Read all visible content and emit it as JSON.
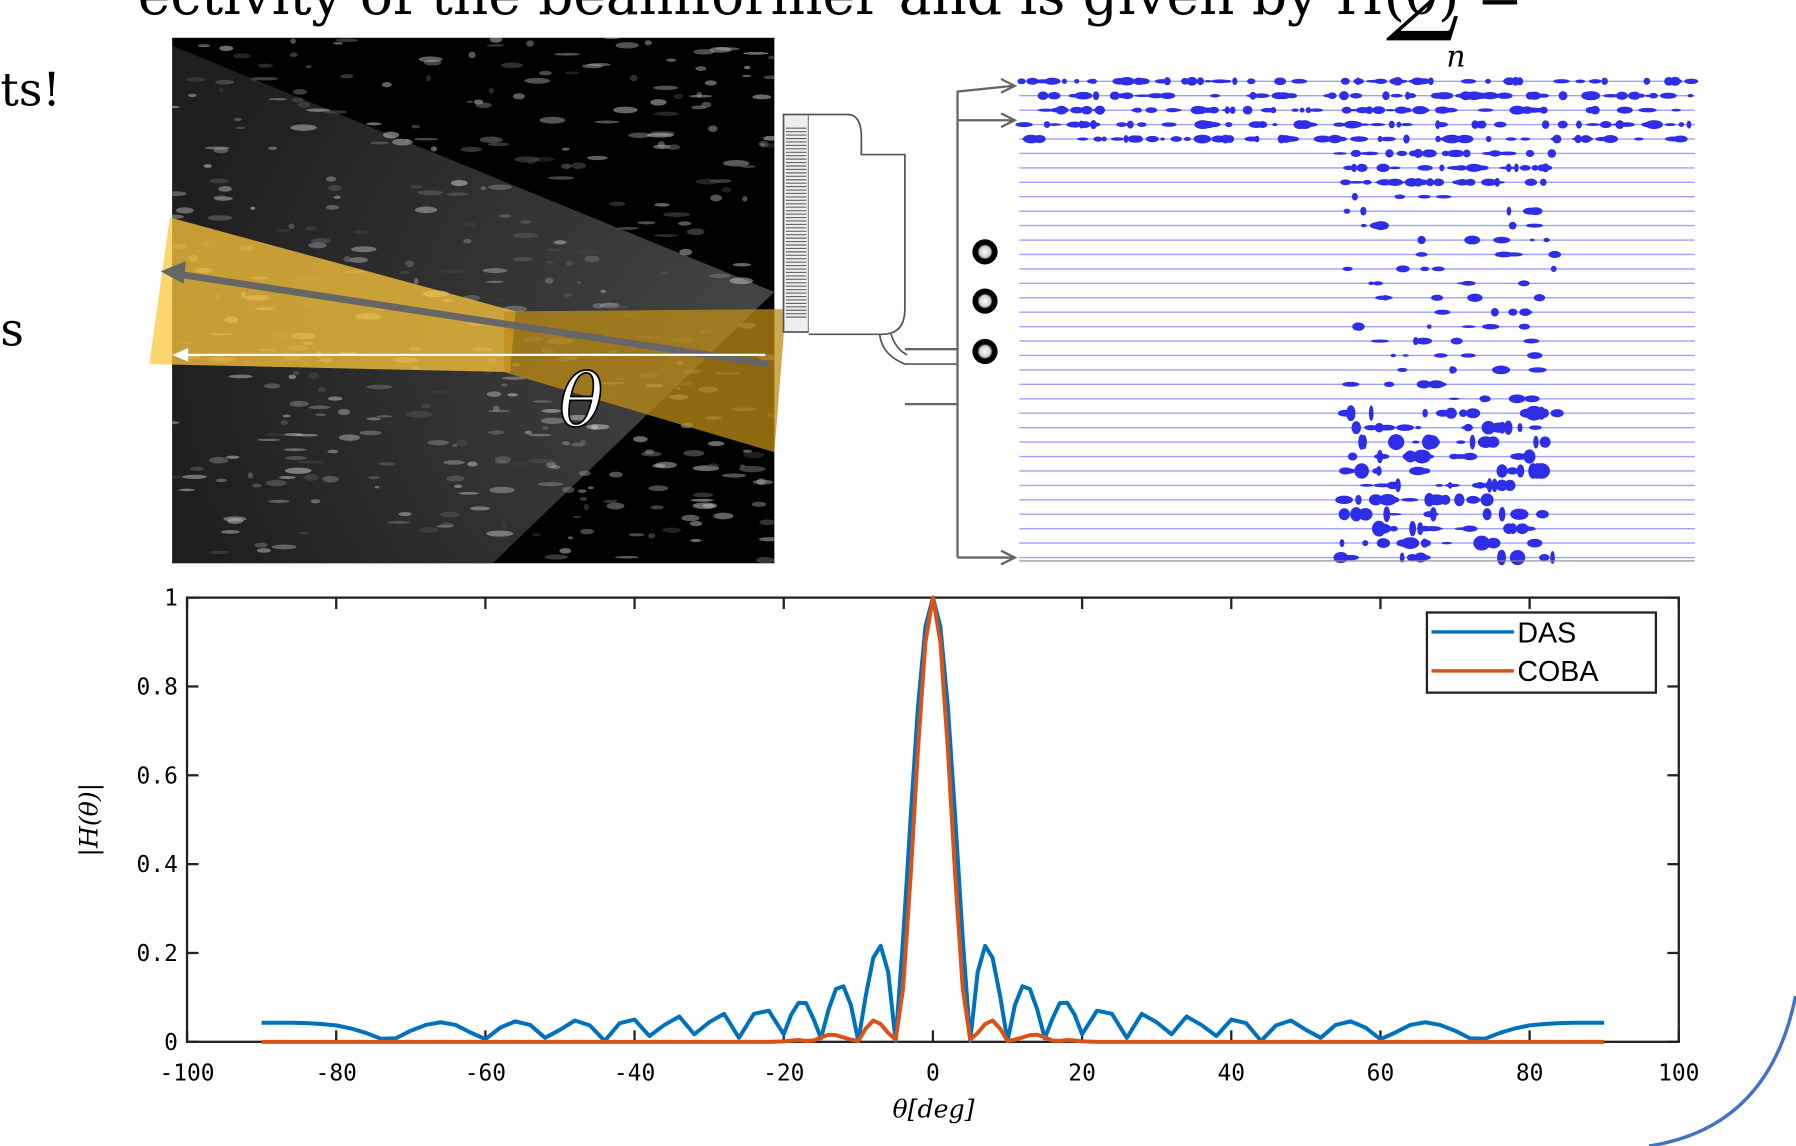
{
  "slide": {
    "heading": "ectivity of the beamformer and is given by H(θ) =",
    "sum_symbol": "∑",
    "sum_index": "n",
    "left_text_1": "ts!",
    "left_text_2": "s",
    "angle_label": "θ"
  },
  "chart_data": {
    "type": "line",
    "xlabel": "θ[deg]",
    "ylabel": "|H(θ)|",
    "x": [
      -90,
      -88,
      -86,
      -84,
      -82,
      -80,
      -78,
      -76,
      -74,
      -72,
      -70,
      -68,
      -66,
      -64,
      -62,
      -60,
      -58,
      -56,
      -54,
      -52,
      -50,
      -48,
      -46,
      -44,
      -42,
      -40,
      -38,
      -36,
      -34,
      -32,
      -30,
      -28,
      -26,
      -24,
      -22,
      -20,
      -19,
      -18,
      -17,
      -16,
      -15,
      -14,
      -13,
      -12,
      -11,
      -10,
      -9,
      -8,
      -7,
      -6,
      -5,
      -4,
      -3,
      -2,
      -1,
      0,
      1,
      2,
      3,
      4,
      5,
      6,
      7,
      8,
      9,
      10,
      11,
      12,
      13,
      14,
      15,
      16,
      17,
      18,
      19,
      20,
      22,
      24,
      26,
      28,
      30,
      32,
      34,
      36,
      38,
      40,
      42,
      44,
      46,
      48,
      50,
      52,
      54,
      56,
      58,
      60,
      62,
      64,
      66,
      68,
      70,
      72,
      74,
      76,
      78,
      80,
      82,
      84,
      86,
      88,
      90
    ],
    "series": [
      {
        "name": "DAS",
        "color": "#0072bd",
        "values": [
          0.043,
          0.043,
          0.043,
          0.042,
          0.04,
          0.037,
          0.03,
          0.02,
          0.007,
          0.008,
          0.025,
          0.038,
          0.044,
          0.038,
          0.021,
          0.006,
          0.032,
          0.046,
          0.038,
          0.009,
          0.027,
          0.048,
          0.037,
          0.002,
          0.042,
          0.05,
          0.013,
          0.038,
          0.057,
          0.017,
          0.044,
          0.063,
          0.009,
          0.063,
          0.07,
          0.017,
          0.061,
          0.088,
          0.087,
          0.051,
          0.008,
          0.072,
          0.119,
          0.125,
          0.083,
          0.002,
          0.104,
          0.189,
          0.216,
          0.157,
          0.002,
          0.231,
          0.502,
          0.755,
          0.935,
          1,
          0.935,
          0.755,
          0.502,
          0.231,
          0.002,
          0.157,
          0.216,
          0.189,
          0.104,
          0.002,
          0.083,
          0.125,
          0.119,
          0.072,
          0.008,
          0.051,
          0.087,
          0.088,
          0.061,
          0.017,
          0.07,
          0.063,
          0.009,
          0.063,
          0.044,
          0.017,
          0.057,
          0.038,
          0.013,
          0.05,
          0.042,
          0.002,
          0.037,
          0.048,
          0.027,
          0.009,
          0.038,
          0.046,
          0.032,
          0.006,
          0.021,
          0.038,
          0.044,
          0.038,
          0.025,
          0.008,
          0.007,
          0.02,
          0.03,
          0.037,
          0.04,
          0.042,
          0.043,
          0.043,
          0.043
        ]
      },
      {
        "name": "COBA",
        "color": "#d95319",
        "values": [
          0,
          0,
          0,
          0,
          0,
          0,
          0,
          0,
          0,
          0,
          0,
          0,
          0,
          0,
          0,
          0,
          0,
          0,
          0,
          0,
          0,
          0,
          0,
          0,
          0,
          0,
          0,
          0,
          0,
          0,
          0,
          0,
          0,
          0,
          0,
          0.001,
          0.003,
          0.004,
          0.002,
          0.003,
          0.01,
          0.016,
          0.015,
          0.01,
          0.005,
          0.002,
          0.03,
          0.048,
          0.04,
          0.02,
          0.005,
          0.12,
          0.37,
          0.66,
          0.9,
          1,
          0.9,
          0.66,
          0.37,
          0.12,
          0.005,
          0.02,
          0.04,
          0.048,
          0.03,
          0.002,
          0.005,
          0.01,
          0.015,
          0.016,
          0.01,
          0.003,
          0.002,
          0.004,
          0.003,
          0.001,
          0,
          0,
          0,
          0,
          0,
          0,
          0,
          0,
          0,
          0,
          0,
          0,
          0,
          0,
          0,
          0,
          0,
          0,
          0,
          0,
          0,
          0,
          0,
          0,
          0,
          0,
          0,
          0,
          0,
          0,
          0,
          0,
          0,
          0,
          0
        ]
      }
    ],
    "xlim": [
      -100,
      100
    ],
    "xticks": [
      -100,
      -80,
      -60,
      -40,
      -20,
      0,
      20,
      40,
      60,
      80,
      100
    ],
    "ylim": [
      0,
      1
    ],
    "yticks": [
      0,
      0.2,
      0.4,
      0.6,
      0.8,
      1
    ],
    "legend": "upper right"
  }
}
